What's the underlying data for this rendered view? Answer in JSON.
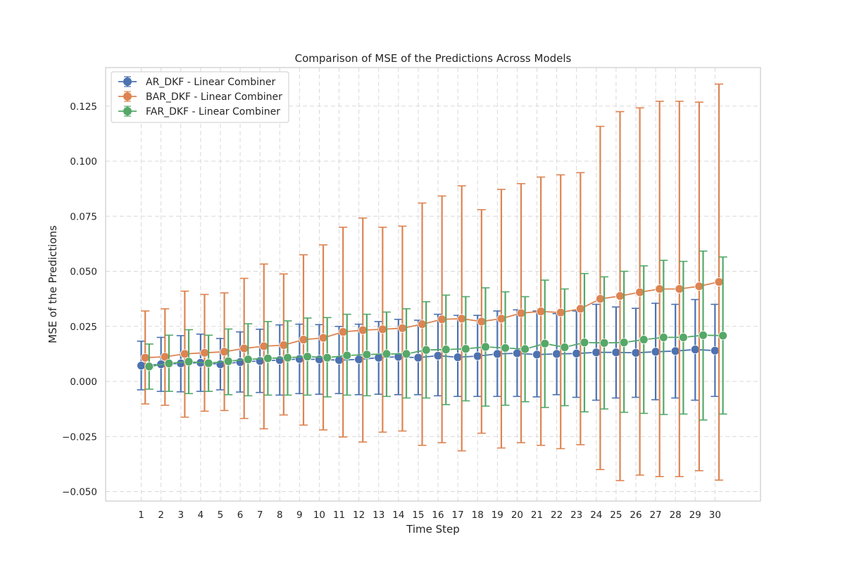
{
  "chart_data": {
    "type": "line",
    "title": "Comparison of MSE of the Predictions Across Models",
    "xlabel": "Time Step",
    "ylabel": "MSE of the Predictions",
    "x": [
      1,
      2,
      3,
      4,
      5,
      6,
      7,
      8,
      9,
      10,
      11,
      12,
      13,
      14,
      15,
      16,
      17,
      18,
      19,
      20,
      21,
      22,
      23,
      24,
      25,
      26,
      27,
      28,
      29,
      30
    ],
    "xlim": [
      -0.8,
      32.3
    ],
    "ylim": [
      -0.0543,
      0.1425
    ],
    "yticks": [
      -0.05,
      -0.025,
      0.0,
      0.025,
      0.05,
      0.075,
      0.1,
      0.125
    ],
    "ytick_labels": [
      "−0.050",
      "−0.025",
      "0.000",
      "0.025",
      "0.050",
      "0.075",
      "0.100",
      "0.125"
    ],
    "grid": true,
    "legend_position": "top-left",
    "error_bars": true,
    "series": [
      {
        "name": "AR_DKF - Linear Combiner",
        "color": "#4c72b0",
        "x_offset": 0,
        "values": [
          0.0072,
          0.0078,
          0.0082,
          0.0085,
          0.0078,
          0.0088,
          0.0093,
          0.0097,
          0.0102,
          0.01,
          0.0097,
          0.01,
          0.0108,
          0.0112,
          0.0108,
          0.0117,
          0.011,
          0.0115,
          0.0125,
          0.0128,
          0.0122,
          0.0125,
          0.0127,
          0.0132,
          0.0132,
          0.013,
          0.0135,
          0.0138,
          0.0145,
          0.014
        ],
        "err_low": [
          -0.0038,
          -0.0045,
          -0.0047,
          -0.0045,
          -0.0038,
          -0.0048,
          -0.005,
          -0.0062,
          -0.0055,
          -0.0058,
          -0.0055,
          -0.006,
          -0.0058,
          -0.006,
          -0.006,
          -0.0065,
          -0.0068,
          -0.0068,
          -0.0068,
          -0.0068,
          -0.007,
          -0.006,
          -0.0072,
          -0.0085,
          -0.0075,
          -0.0072,
          -0.0083,
          -0.0075,
          -0.0085,
          -0.0068
        ],
        "err_high": [
          0.0183,
          0.02,
          0.0208,
          0.0215,
          0.0195,
          0.0225,
          0.0237,
          0.0257,
          0.026,
          0.0258,
          0.025,
          0.026,
          0.0272,
          0.0282,
          0.0278,
          0.0305,
          0.03,
          0.03,
          0.032,
          0.0325,
          0.032,
          0.0308,
          0.032,
          0.035,
          0.0338,
          0.0332,
          0.0355,
          0.035,
          0.0372,
          0.035
        ]
      },
      {
        "name": "BAR_DKF - Linear Combiner",
        "color": "#dd8452",
        "x_offset": 0.2,
        "values": [
          0.0108,
          0.0112,
          0.0125,
          0.013,
          0.0135,
          0.015,
          0.016,
          0.0165,
          0.019,
          0.0198,
          0.0225,
          0.0233,
          0.0237,
          0.0242,
          0.026,
          0.0282,
          0.0285,
          0.0272,
          0.0285,
          0.031,
          0.0318,
          0.0313,
          0.033,
          0.0375,
          0.0388,
          0.0405,
          0.042,
          0.042,
          0.0432,
          0.0452
        ],
        "err_low": [
          -0.0102,
          -0.0108,
          -0.0162,
          -0.0135,
          -0.0132,
          -0.0168,
          -0.0215,
          -0.0152,
          -0.0198,
          -0.022,
          -0.0252,
          -0.0275,
          -0.023,
          -0.0225,
          -0.029,
          -0.0278,
          -0.0315,
          -0.0235,
          -0.0302,
          -0.0278,
          -0.029,
          -0.0305,
          -0.0287,
          -0.04,
          -0.045,
          -0.0425,
          -0.0432,
          -0.0432,
          -0.0405,
          -0.0448
        ],
        "err_high": [
          0.032,
          0.033,
          0.041,
          0.0395,
          0.0402,
          0.0468,
          0.0533,
          0.0488,
          0.0575,
          0.062,
          0.07,
          0.0742,
          0.07,
          0.0705,
          0.081,
          0.0842,
          0.0888,
          0.078,
          0.0872,
          0.0898,
          0.0928,
          0.0938,
          0.0948,
          0.1158,
          0.1225,
          0.1242,
          0.1272,
          0.1272,
          0.1268,
          0.135
        ]
      },
      {
        "name": "FAR_DKF - Linear Combiner",
        "color": "#55a868",
        "x_offset": 0.4,
        "values": [
          0.0068,
          0.0082,
          0.009,
          0.0083,
          0.0092,
          0.01,
          0.0105,
          0.0108,
          0.0113,
          0.0108,
          0.0118,
          0.0122,
          0.0125,
          0.0125,
          0.0143,
          0.0145,
          0.0148,
          0.0157,
          0.0152,
          0.0147,
          0.0172,
          0.0155,
          0.0177,
          0.0175,
          0.0177,
          0.019,
          0.02,
          0.02,
          0.021,
          0.0208
        ],
        "err_low": [
          -0.0035,
          -0.0045,
          -0.0055,
          -0.0045,
          -0.006,
          -0.0065,
          -0.0062,
          -0.0062,
          -0.0062,
          -0.007,
          -0.0062,
          -0.0065,
          -0.0068,
          -0.0075,
          -0.0075,
          -0.0105,
          -0.0088,
          -0.0112,
          -0.0108,
          -0.0092,
          -0.0118,
          -0.011,
          -0.0138,
          -0.0125,
          -0.014,
          -0.0145,
          -0.015,
          -0.0148,
          -0.0175,
          -0.0148
        ],
        "err_high": [
          0.017,
          0.021,
          0.0235,
          0.021,
          0.0238,
          0.0262,
          0.0272,
          0.0275,
          0.0288,
          0.029,
          0.0305,
          0.0305,
          0.0315,
          0.033,
          0.0362,
          0.0392,
          0.0385,
          0.0425,
          0.0407,
          0.0385,
          0.046,
          0.042,
          0.049,
          0.0475,
          0.05,
          0.0525,
          0.055,
          0.0545,
          0.0592,
          0.0565
        ]
      }
    ]
  }
}
